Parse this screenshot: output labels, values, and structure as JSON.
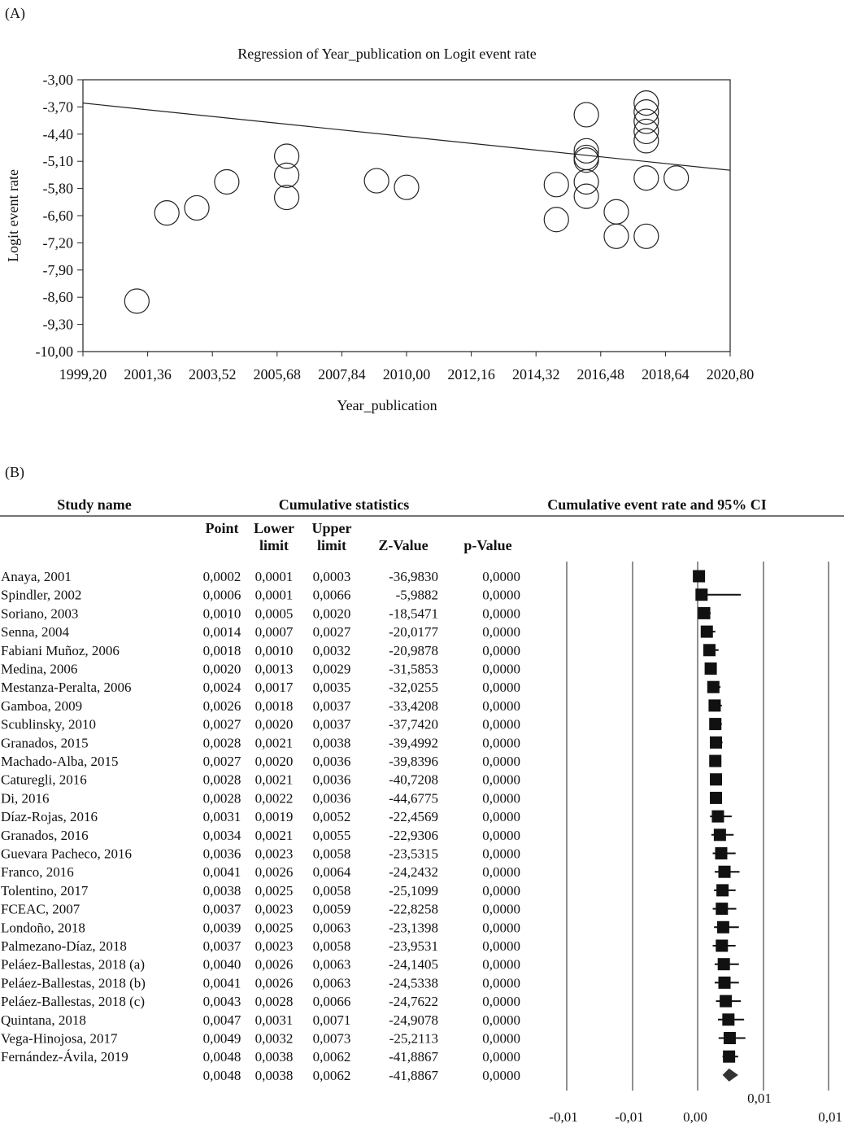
{
  "chart_data": [
    {
      "type": "scatter",
      "panel_label": "(A)",
      "title": "Regression of  Year_publication on Logit event rate",
      "xlabel": "Year_publication",
      "ylabel": "Logit event rate",
      "xlim": [
        1999.2,
        2020.8
      ],
      "ylim": [
        -10.0,
        -3.0
      ],
      "xticks": [
        "1999,20",
        "2001,36",
        "2003,52",
        "2005,68",
        "2007,84",
        "2010,00",
        "2012,16",
        "2014,32",
        "2016,48",
        "2018,64",
        "2020,80"
      ],
      "yticks": [
        "-3,00",
        "-3,70",
        "-4,40",
        "-5,10",
        "-5,80",
        "-6,60",
        "-7,20",
        "-7,90",
        "-8,60",
        "-9,30",
        "-10,00"
      ],
      "regression_line": {
        "x": [
          1999.2,
          2020.8
        ],
        "y": [
          -3.6,
          -5.33
        ]
      },
      "points": [
        {
          "x": 2001,
          "y": -8.7
        },
        {
          "x": 2002,
          "y": -6.43
        },
        {
          "x": 2003,
          "y": -6.3
        },
        {
          "x": 2004,
          "y": -5.63
        },
        {
          "x": 2006,
          "y": -4.97
        },
        {
          "x": 2006,
          "y": -5.46
        },
        {
          "x": 2006,
          "y": -6.03
        },
        {
          "x": 2009,
          "y": -5.6
        },
        {
          "x": 2010,
          "y": -5.77
        },
        {
          "x": 2015,
          "y": -5.7
        },
        {
          "x": 2015,
          "y": -6.6
        },
        {
          "x": 2016,
          "y": -3.9
        },
        {
          "x": 2016,
          "y": -4.83
        },
        {
          "x": 2016,
          "y": -5.0
        },
        {
          "x": 2016,
          "y": -5.07
        },
        {
          "x": 2016,
          "y": -5.63
        },
        {
          "x": 2016,
          "y": -6.0
        },
        {
          "x": 2017,
          "y": -6.4
        },
        {
          "x": 2017,
          "y": -7.03
        },
        {
          "x": 2018,
          "y": -3.6
        },
        {
          "x": 2018,
          "y": -3.83
        },
        {
          "x": 2018,
          "y": -4.07
        },
        {
          "x": 2018,
          "y": -4.33
        },
        {
          "x": 2018,
          "y": -4.57
        },
        {
          "x": 2018,
          "y": -5.53
        },
        {
          "x": 2018,
          "y": -7.03
        },
        {
          "x": 2019,
          "y": -5.53
        }
      ]
    },
    {
      "type": "forest",
      "panel_label": "(B)",
      "headers": {
        "study": "Study name",
        "stats": "Cumulative statistics",
        "plot": "Cumulative event rate and 95% CI",
        "point": "Point",
        "lower1": "Lower",
        "lower2": "limit",
        "upper1": "Upper",
        "upper2": "limit",
        "z": "Z-Value",
        "p": "p-Value"
      },
      "xticks": [
        "-0,01",
        "-0,01",
        "0,00",
        "0,01",
        "0,01"
      ],
      "xlim": [
        -0.01,
        0.01
      ],
      "rows": [
        {
          "study": "Anaya, 2001",
          "point": "0,0002",
          "lower": "0,0001",
          "upper": "0,0003",
          "z": "-36,9830",
          "p": "0,0000"
        },
        {
          "study": "Spindler, 2002",
          "point": "0,0006",
          "lower": "0,0001",
          "upper": "0,0066",
          "z": "-5,9882",
          "p": "0,0000"
        },
        {
          "study": "Soriano, 2003",
          "point": "0,0010",
          "lower": "0,0005",
          "upper": "0,0020",
          "z": "-18,5471",
          "p": "0,0000"
        },
        {
          "study": "Senna, 2004",
          "point": "0,0014",
          "lower": "0,0007",
          "upper": "0,0027",
          "z": "-20,0177",
          "p": "0,0000"
        },
        {
          "study": "Fabiani Muñoz, 2006",
          "point": "0,0018",
          "lower": "0,0010",
          "upper": "0,0032",
          "z": "-20,9878",
          "p": "0,0000"
        },
        {
          "study": "Medina, 2006",
          "point": "0,0020",
          "lower": "0,0013",
          "upper": "0,0029",
          "z": "-31,5853",
          "p": "0,0000"
        },
        {
          "study": "Mestanza-Peralta, 2006",
          "point": "0,0024",
          "lower": "0,0017",
          "upper": "0,0035",
          "z": "-32,0255",
          "p": "0,0000"
        },
        {
          "study": "Gamboa, 2009",
          "point": "0,0026",
          "lower": "0,0018",
          "upper": "0,0037",
          "z": "-33,4208",
          "p": "0,0000"
        },
        {
          "study": "Scublinsky, 2010",
          "point": "0,0027",
          "lower": "0,0020",
          "upper": "0,0037",
          "z": "-37,7420",
          "p": "0,0000"
        },
        {
          "study": "Granados, 2015",
          "point": "0,0028",
          "lower": "0,0021",
          "upper": "0,0038",
          "z": "-39,4992",
          "p": "0,0000"
        },
        {
          "study": "Machado-Alba, 2015",
          "point": "0,0027",
          "lower": "0,0020",
          "upper": "0,0036",
          "z": "-39,8396",
          "p": "0,0000"
        },
        {
          "study": "Caturegli, 2016",
          "point": "0,0028",
          "lower": "0,0021",
          "upper": "0,0036",
          "z": "-40,7208",
          "p": "0,0000"
        },
        {
          "study": "Di, 2016",
          "point": "0,0028",
          "lower": "0,0022",
          "upper": "0,0036",
          "z": "-44,6775",
          "p": "0,0000"
        },
        {
          "study": "Díaz-Rojas, 2016",
          "point": "0,0031",
          "lower": "0,0019",
          "upper": "0,0052",
          "z": "-22,4569",
          "p": "0,0000"
        },
        {
          "study": "Granados, 2016",
          "point": "0,0034",
          "lower": "0,0021",
          "upper": "0,0055",
          "z": "-22,9306",
          "p": "0,0000"
        },
        {
          "study": "Guevara Pacheco, 2016",
          "point": "0,0036",
          "lower": "0,0023",
          "upper": "0,0058",
          "z": "-23,5315",
          "p": "0,0000"
        },
        {
          "study": "Franco, 2016",
          "point": "0,0041",
          "lower": "0,0026",
          "upper": "0,0064",
          "z": "-24,2432",
          "p": "0,0000"
        },
        {
          "study": "Tolentino, 2017",
          "point": "0,0038",
          "lower": "0,0025",
          "upper": "0,0058",
          "z": "-25,1099",
          "p": "0,0000"
        },
        {
          "study": "FCEAC, 2007",
          "point": "0,0037",
          "lower": "0,0023",
          "upper": "0,0059",
          "z": "-22,8258",
          "p": "0,0000"
        },
        {
          "study": "Londoño, 2018",
          "point": "0,0039",
          "lower": "0,0025",
          "upper": "0,0063",
          "z": "-23,1398",
          "p": "0,0000"
        },
        {
          "study": "Palmezano-Díaz, 2018",
          "point": "0,0037",
          "lower": "0,0023",
          "upper": "0,0058",
          "z": "-23,9531",
          "p": "0,0000"
        },
        {
          "study": "Peláez-Ballestas, 2018 (a)",
          "point": "0,0040",
          "lower": "0,0026",
          "upper": "0,0063",
          "z": "-24,1405",
          "p": "0,0000"
        },
        {
          "study": "Peláez-Ballestas, 2018 (b)",
          "point": "0,0041",
          "lower": "0,0026",
          "upper": "0,0063",
          "z": "-24,5338",
          "p": "0,0000"
        },
        {
          "study": "Peláez-Ballestas, 2018 (c)",
          "point": "0,0043",
          "lower": "0,0028",
          "upper": "0,0066",
          "z": "-24,7622",
          "p": "0,0000"
        },
        {
          "study": "Quintana, 2018",
          "point": "0,0047",
          "lower": "0,0031",
          "upper": "0,0071",
          "z": "-24,9078",
          "p": "0,0000"
        },
        {
          "study": "Vega-Hinojosa, 2017",
          "point": "0,0049",
          "lower": "0,0032",
          "upper": "0,0073",
          "z": "-25,2113",
          "p": "0,0000"
        },
        {
          "study": "Fernández-Ávila, 2019",
          "point": "0,0048",
          "lower": "0,0038",
          "upper": "0,0062",
          "z": "-41,8867",
          "p": "0,0000"
        }
      ],
      "summary": {
        "study": "",
        "point": "0,0048",
        "lower": "0,0038",
        "upper": "0,0062",
        "z": "-41,8867",
        "p": "0,0000"
      }
    }
  ]
}
